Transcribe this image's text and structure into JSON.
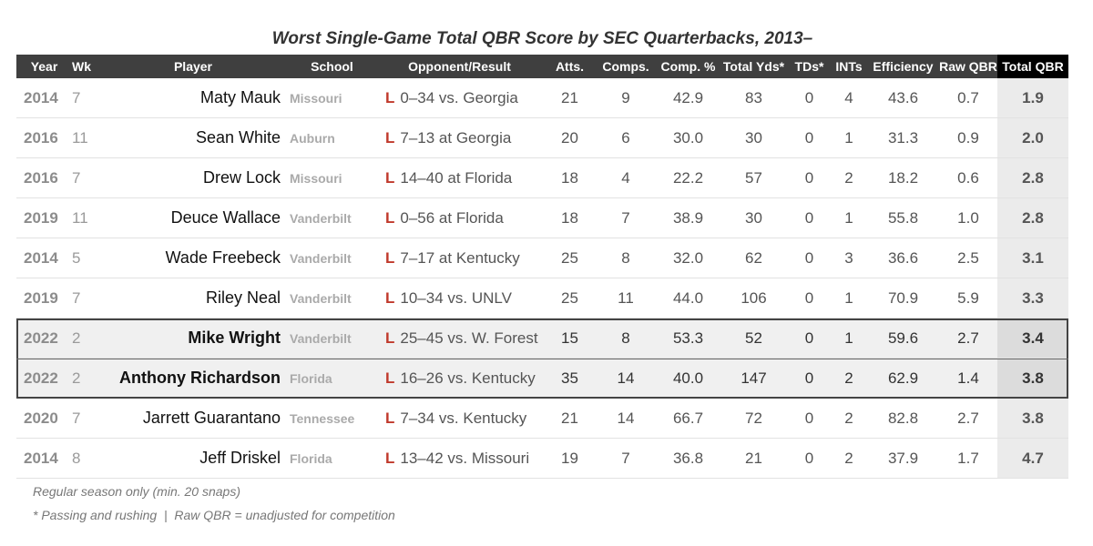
{
  "chart_data": {
    "type": "table",
    "title": "Worst Single-Game Total QBR Score by SEC Quarterbacks, 2013–",
    "columns": [
      "Year",
      "Wk",
      "Player",
      "School",
      "Opponent/Result",
      "Atts.",
      "Comps.",
      "Comp. %",
      "Total Yds*",
      "TDs*",
      "INTs",
      "Efficiency",
      "Raw QBR",
      "Total QBR"
    ],
    "rows": [
      {
        "year": "2014",
        "wk": "7",
        "player": "Maty Mauk",
        "school": "Missouri",
        "result": "L",
        "opponent": "0–34 vs. Georgia",
        "atts": "21",
        "comps": "9",
        "comp_pct": "42.9",
        "total_yds": "83",
        "tds": "0",
        "ints": "4",
        "efficiency": "43.6",
        "raw_qbr": "0.7",
        "total_qbr": "1.9",
        "highlight": false
      },
      {
        "year": "2016",
        "wk": "11",
        "player": "Sean White",
        "school": "Auburn",
        "result": "L",
        "opponent": "7–13 at Georgia",
        "atts": "20",
        "comps": "6",
        "comp_pct": "30.0",
        "total_yds": "30",
        "tds": "0",
        "ints": "1",
        "efficiency": "31.3",
        "raw_qbr": "0.9",
        "total_qbr": "2.0",
        "highlight": false
      },
      {
        "year": "2016",
        "wk": "7",
        "player": "Drew Lock",
        "school": "Missouri",
        "result": "L",
        "opponent": "14–40 at Florida",
        "atts": "18",
        "comps": "4",
        "comp_pct": "22.2",
        "total_yds": "57",
        "tds": "0",
        "ints": "2",
        "efficiency": "18.2",
        "raw_qbr": "0.6",
        "total_qbr": "2.8",
        "highlight": false
      },
      {
        "year": "2019",
        "wk": "11",
        "player": "Deuce Wallace",
        "school": "Vanderbilt",
        "result": "L",
        "opponent": "0–56 at Florida",
        "atts": "18",
        "comps": "7",
        "comp_pct": "38.9",
        "total_yds": "30",
        "tds": "0",
        "ints": "1",
        "efficiency": "55.8",
        "raw_qbr": "1.0",
        "total_qbr": "2.8",
        "highlight": false
      },
      {
        "year": "2014",
        "wk": "5",
        "player": "Wade Freebeck",
        "school": "Vanderbilt",
        "result": "L",
        "opponent": "7–17 at Kentucky",
        "atts": "25",
        "comps": "8",
        "comp_pct": "32.0",
        "total_yds": "62",
        "tds": "0",
        "ints": "3",
        "efficiency": "36.6",
        "raw_qbr": "2.5",
        "total_qbr": "3.1",
        "highlight": false
      },
      {
        "year": "2019",
        "wk": "7",
        "player": "Riley Neal",
        "school": "Vanderbilt",
        "result": "L",
        "opponent": "10–34 vs. UNLV",
        "atts": "25",
        "comps": "11",
        "comp_pct": "44.0",
        "total_yds": "106",
        "tds": "0",
        "ints": "1",
        "efficiency": "70.9",
        "raw_qbr": "5.9",
        "total_qbr": "3.3",
        "highlight": false
      },
      {
        "year": "2022",
        "wk": "2",
        "player": "Mike Wright",
        "school": "Vanderbilt",
        "result": "L",
        "opponent": "25–45 vs. W. Forest",
        "atts": "15",
        "comps": "8",
        "comp_pct": "53.3",
        "total_yds": "52",
        "tds": "0",
        "ints": "1",
        "efficiency": "59.6",
        "raw_qbr": "2.7",
        "total_qbr": "3.4",
        "highlight": true
      },
      {
        "year": "2022",
        "wk": "2",
        "player": "Anthony Richardson",
        "school": "Florida",
        "result": "L",
        "opponent": "16–26 vs. Kentucky",
        "atts": "35",
        "comps": "14",
        "comp_pct": "40.0",
        "total_yds": "147",
        "tds": "0",
        "ints": "2",
        "efficiency": "62.9",
        "raw_qbr": "1.4",
        "total_qbr": "3.8",
        "highlight": true
      },
      {
        "year": "2020",
        "wk": "7",
        "player": "Jarrett Guarantano",
        "school": "Tennessee",
        "result": "L",
        "opponent": "7–34 vs. Kentucky",
        "atts": "21",
        "comps": "14",
        "comp_pct": "66.7",
        "total_yds": "72",
        "tds": "0",
        "ints": "2",
        "efficiency": "82.8",
        "raw_qbr": "2.7",
        "total_qbr": "3.8",
        "highlight": false
      },
      {
        "year": "2014",
        "wk": "8",
        "player": "Jeff Driskel",
        "school": "Florida",
        "result": "L",
        "opponent": "13–42 vs. Missouri",
        "atts": "19",
        "comps": "7",
        "comp_pct": "36.8",
        "total_yds": "21",
        "tds": "0",
        "ints": "2",
        "efficiency": "37.9",
        "raw_qbr": "1.7",
        "total_qbr": "4.7",
        "highlight": false
      }
    ]
  },
  "notes": {
    "line1": "Regular season only (min. 20 snaps)",
    "line2": "* Passing and rushing  |  Raw QBR = unadjusted for competition"
  },
  "colors": {
    "header_bg": "#3f3f3f",
    "total_qbr_header_bg": "#000000",
    "loss_marker": "#c0392b",
    "highlight_row_bg": "#f0f0f0"
  }
}
